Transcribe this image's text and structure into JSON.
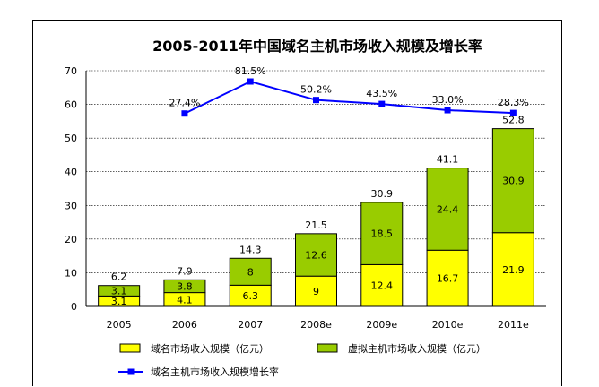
{
  "chart_data": {
    "type": "bar",
    "title": "2005-2011年中国域名主机市场收入规模及增长率",
    "categories": [
      "2005",
      "2006",
      "2007",
      "2008e",
      "2009e",
      "2010e",
      "2011e"
    ],
    "series": [
      {
        "name": "域名市场收入规模（亿元）",
        "values": [
          3.1,
          4.1,
          6.3,
          9.0,
          12.4,
          16.7,
          21.9
        ],
        "color": "#ffff00"
      },
      {
        "name": "虚拟主机市场收入规模（亿元）",
        "values": [
          3.1,
          3.8,
          8.0,
          12.6,
          18.5,
          24.4,
          30.9
        ],
        "color": "#99cc00"
      }
    ],
    "totals": [
      "6.2",
      "7.9",
      "14.3",
      "21.5",
      "30.9",
      "41.1",
      "52.8"
    ],
    "line_series": {
      "name": "域名主机市场收入规模增长率",
      "type": "line",
      "color": "#0000ff",
      "categories": [
        "2006",
        "2007",
        "2008e",
        "2009e",
        "2010e",
        "2011e"
      ],
      "values": [
        27.4,
        81.5,
        50.2,
        43.5,
        33.0,
        28.3
      ],
      "labels": [
        "27.4%",
        "81.5%",
        "50.2%",
        "43.5%",
        "33.0%",
        "28.3%"
      ]
    },
    "ylim": [
      0,
      70
    ],
    "yticks": [
      0,
      10,
      20,
      30,
      40,
      50,
      60,
      70
    ],
    "grid": true,
    "legend_position": "bottom"
  }
}
